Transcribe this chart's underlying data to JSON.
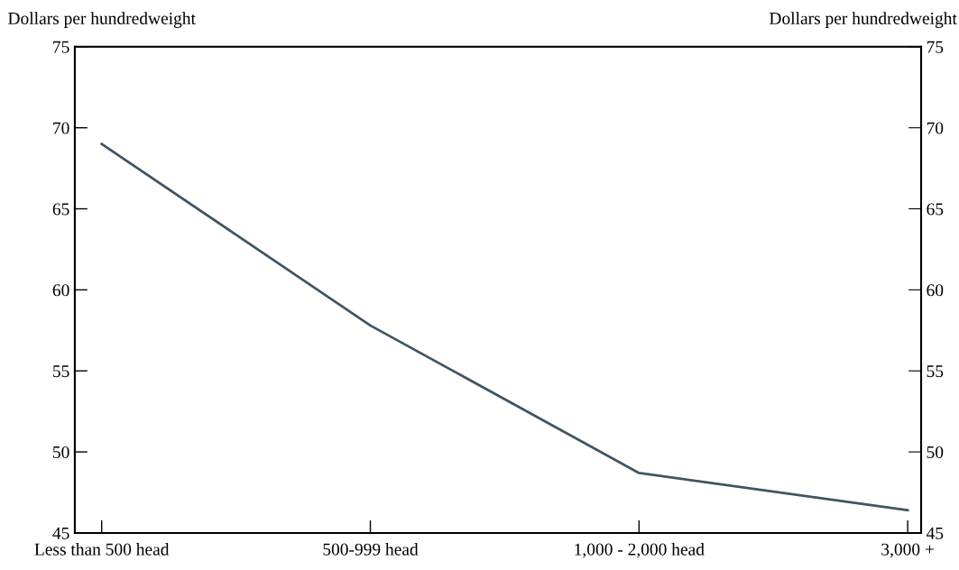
{
  "chart_data": {
    "type": "line",
    "categories": [
      "Less than 500 head",
      "500-999 head",
      "1,000 - 2,000 head",
      "3,000 +"
    ],
    "series": [
      {
        "color": "#3f5561",
        "values": [
          69.0,
          57.8,
          48.7,
          46.4
        ]
      }
    ],
    "ylabel": "Dollars per hundredweight",
    "y2label": "Dollars per hundredweight",
    "ylim": [
      45,
      75
    ],
    "yticks": [
      45,
      50,
      55,
      60,
      65,
      70,
      75
    ],
    "y2lim": [
      45,
      75
    ],
    "y2ticks": [
      45,
      50,
      55,
      60,
      65,
      70,
      75
    ],
    "grid": false,
    "legend": false,
    "marker": "none",
    "line_style": "solid"
  }
}
